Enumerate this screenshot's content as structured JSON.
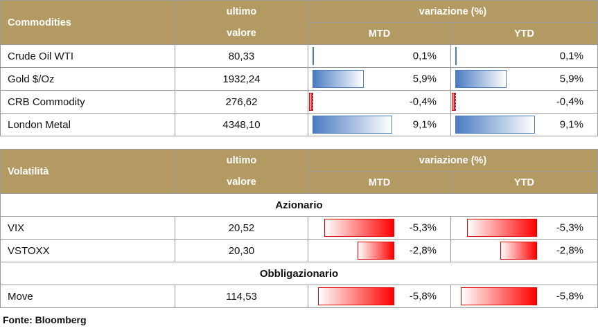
{
  "header": {
    "ultimo_line1": "ultimo",
    "ultimo_line2": "valore",
    "variazione": "variazione (%)",
    "mtd": "MTD",
    "ytd": "YTD"
  },
  "commodities": {
    "title": "Commodities",
    "rows": [
      {
        "name": "Crude Oil WTI",
        "value": "80,33",
        "mtd": "0,1%",
        "ytd": "0,1%",
        "mtd_num": 0.1,
        "ytd_num": 0.1
      },
      {
        "name": "Gold $/Oz",
        "value": "1932,24",
        "mtd": "5,9%",
        "ytd": "5,9%",
        "mtd_num": 5.9,
        "ytd_num": 5.9
      },
      {
        "name": "CRB Commodity",
        "value": "276,62",
        "mtd": "-0,4%",
        "ytd": "-0,4%",
        "mtd_num": -0.4,
        "ytd_num": -0.4
      },
      {
        "name": "London Metal",
        "value": "4348,10",
        "mtd": "9,1%",
        "ytd": "9,1%",
        "mtd_num": 9.1,
        "ytd_num": 9.1
      }
    ]
  },
  "volatility": {
    "title": "Volatilità",
    "sections": [
      {
        "label": "Azionario",
        "rows": [
          {
            "name": "VIX",
            "value": "20,52",
            "mtd": "-5,3%",
            "ytd": "-5,3%",
            "mtd_num": -5.3,
            "ytd_num": -5.3
          },
          {
            "name": "VSTOXX",
            "value": "20,30",
            "mtd": "-2,8%",
            "ytd": "-2,8%",
            "mtd_num": -2.8,
            "ytd_num": -2.8
          }
        ]
      },
      {
        "label": "Obbligazionario",
        "rows": [
          {
            "name": "Move",
            "value": "114,53",
            "mtd": "-5,8%",
            "ytd": "-5,8%",
            "mtd_num": -5.8,
            "ytd_num": -5.8
          }
        ]
      }
    ]
  },
  "footer": "Fonte: Bloomberg",
  "colors": {
    "header_bg": "#b39a63",
    "positive_bar": "#4a7cc2",
    "negative_bar": "#ff0000"
  }
}
